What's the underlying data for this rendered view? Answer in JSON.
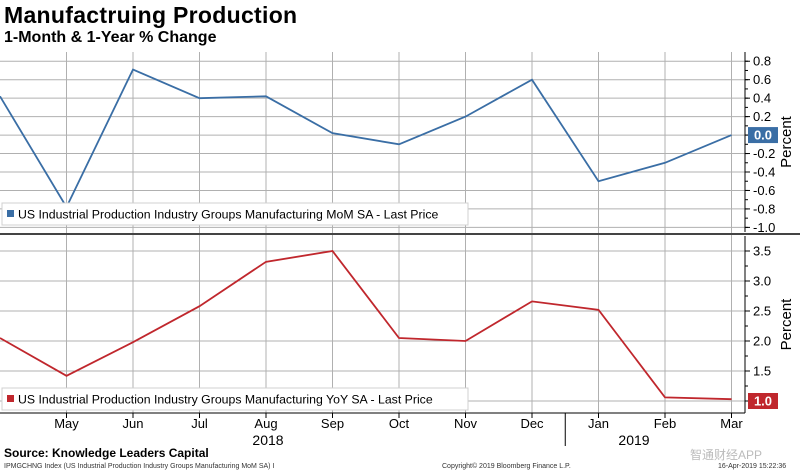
{
  "header": {
    "title": "Manufactruing Production",
    "subtitle": "1-Month & 1-Year % Change"
  },
  "footer": {
    "source": "Source: Knowledge Leaders Capital",
    "index_note": "IPMGCHNG Index (US Industrial Production Industry Groups Manufacturing MoM SA) I",
    "copyright": "Copyright© 2019 Bloomberg Finance L.P.",
    "timestamp": "16-Apr-2019 15:22:36",
    "watermark": "智通财经APP"
  },
  "colors": {
    "mom": "#3a6ea5",
    "yoy": "#c0272d",
    "grid": "#b0b0b0",
    "divider": "#444444"
  },
  "chart_data": [
    {
      "type": "line",
      "title": "",
      "ylabel": "Percent",
      "ylim": [
        -1.05,
        0.9
      ],
      "yticks": [
        "0.8",
        "0.6",
        "0.4",
        "0.2",
        "0.0",
        "-0.2",
        "-0.4",
        "-0.6",
        "-0.8",
        "-1.0"
      ],
      "ytick_values": [
        0.8,
        0.6,
        0.4,
        0.2,
        0.0,
        -0.2,
        -0.4,
        -0.6,
        -0.8,
        -1.0
      ],
      "series": [
        {
          "name": "US Industrial Production Industry Groups Manufacturing MoM SA - Last Price",
          "values": [
            0.42,
            -0.78,
            0.71,
            0.4,
            0.42,
            0.02,
            -0.1,
            0.2,
            0.6,
            -0.5,
            -0.3,
            0.0
          ]
        }
      ],
      "last_value_label": "0.0",
      "last_value": 0.0
    },
    {
      "type": "line",
      "title": "",
      "ylabel": "Percent",
      "ylim": [
        0.8,
        3.75
      ],
      "yticks": [
        "3.5",
        "3.0",
        "2.5",
        "2.0",
        "1.5",
        "1.0"
      ],
      "ytick_values": [
        3.5,
        3.0,
        2.5,
        2.0,
        1.5,
        1.0
      ],
      "series": [
        {
          "name": "US Industrial Production Industry Groups Manufacturing YoY SA - Last Price",
          "values": [
            2.05,
            1.42,
            1.98,
            2.58,
            3.32,
            3.5,
            2.05,
            2.0,
            2.66,
            2.52,
            1.06,
            1.03
          ]
        }
      ],
      "last_value_label": "1.0",
      "last_value": 1.0
    }
  ],
  "x_axis": {
    "months": [
      "May",
      "Jun",
      "Jul",
      "Aug",
      "Sep",
      "Oct",
      "Nov",
      "Dec",
      "Jan",
      "Feb",
      "Mar"
    ],
    "years": [
      "2018",
      "2019"
    ]
  }
}
